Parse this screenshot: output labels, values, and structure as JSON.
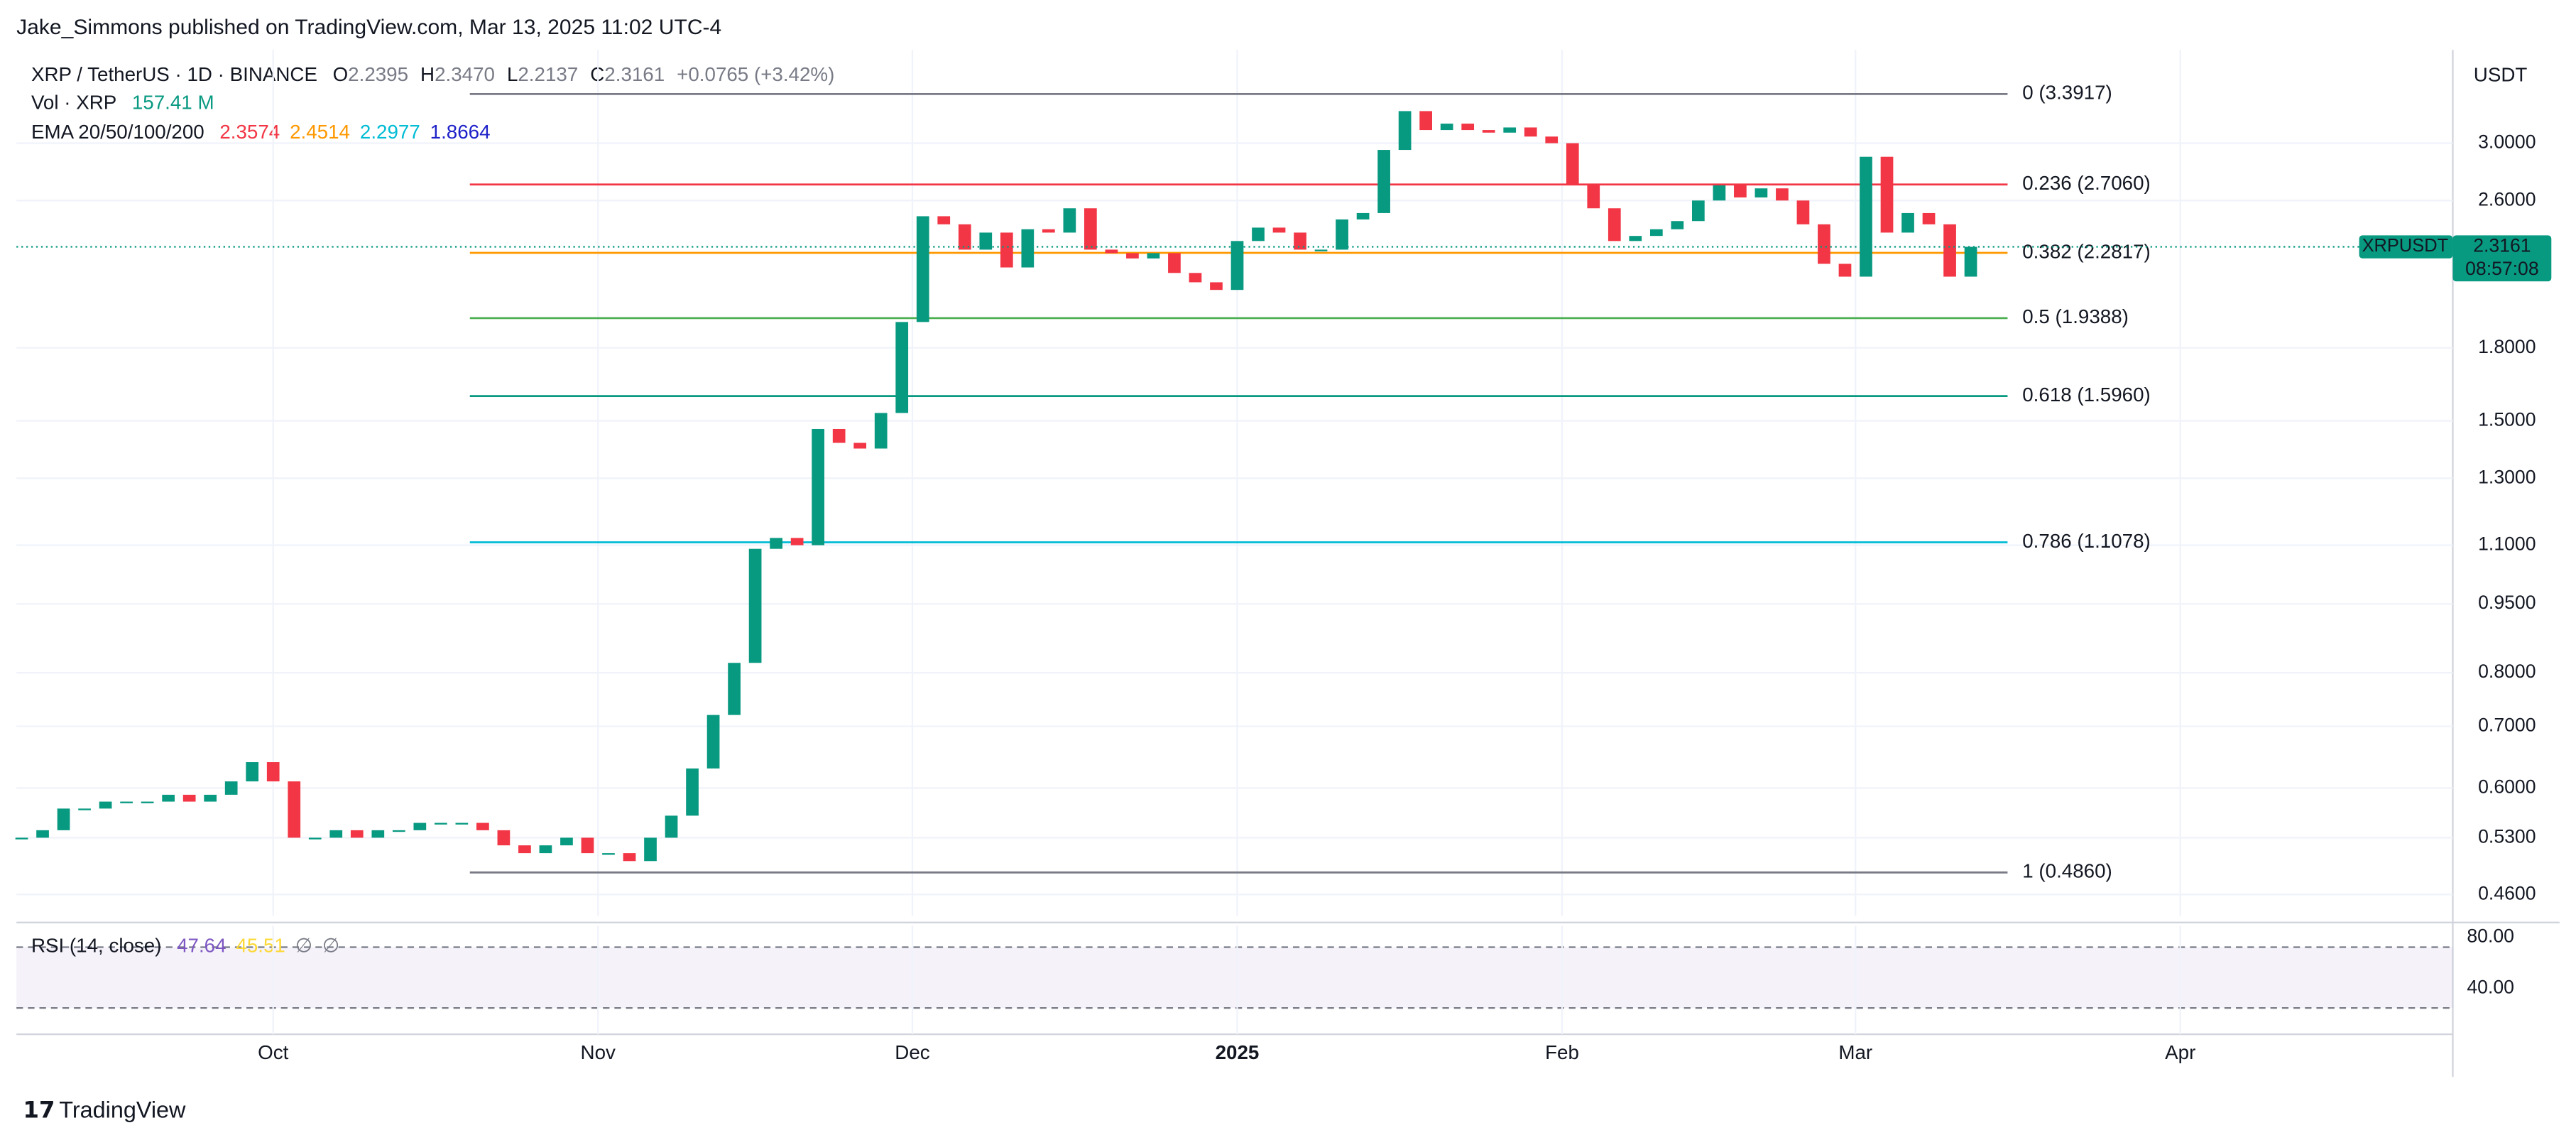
{
  "header": {
    "publisher": "Jake_Simmons published on TradingView.com, Mar 13, 2025 11:02 UTC-4"
  },
  "legend": {
    "symbol": "XRP / TetherUS · 1D · BINANCE",
    "ohlc": [
      {
        "label": "O",
        "value": "2.2395"
      },
      {
        "label": "H",
        "value": "2.3470"
      },
      {
        "label": "L",
        "value": "2.2137"
      },
      {
        "label": "C",
        "value": "2.3161"
      }
    ],
    "change": "+0.0765 (+3.42%)",
    "volume": {
      "label": "Vol · XRP",
      "value": "157.41 M"
    },
    "ema": {
      "label": "EMA 20/50/100/200",
      "values": [
        {
          "value": "2.3574",
          "color": "#f23645"
        },
        {
          "value": "2.4514",
          "color": "#ff9800"
        },
        {
          "value": "2.2977",
          "color": "#00bcd4"
        },
        {
          "value": "1.8664",
          "color": "#1e22c8"
        }
      ]
    }
  },
  "chart_data": {
    "type": "candlestick",
    "series": [
      {
        "name": "XRPUSDT",
        "values": [
          0.53,
          0.54,
          0.57,
          0.57,
          0.58,
          0.58,
          0.58,
          0.59,
          0.58,
          0.59,
          0.61,
          0.64,
          0.61,
          0.53,
          0.53,
          0.54,
          0.53,
          0.54,
          0.54,
          0.55,
          0.55,
          0.55,
          0.54,
          0.52,
          0.51,
          0.52,
          0.53,
          0.51,
          0.51,
          0.5,
          0.53,
          0.56,
          0.63,
          0.72,
          0.82,
          1.09,
          1.12,
          1.1,
          1.47,
          1.42,
          1.4,
          1.53,
          1.92,
          2.5,
          2.45,
          2.3,
          2.4,
          2.2,
          2.42,
          2.4,
          2.55,
          2.3,
          2.28,
          2.25,
          2.28,
          2.17,
          2.12,
          2.08,
          2.35,
          2.43,
          2.4,
          2.3,
          2.3,
          2.48,
          2.52,
          2.95,
          3.25,
          3.1,
          3.15,
          3.1,
          3.08,
          3.12,
          3.05,
          3.0,
          2.7,
          2.55,
          2.35,
          2.38,
          2.42,
          2.47,
          2.6,
          2.7,
          2.62,
          2.68,
          2.6,
          2.45,
          2.22,
          2.15,
          2.9,
          2.4,
          2.52,
          2.45,
          2.15,
          2.3161
        ]
      }
    ],
    "up_color": "#089981",
    "down_color": "#f23645",
    "log_scale": true,
    "grid": true,
    "ylim": [
      0.436,
      3.71
    ],
    "yticks": [
      {
        "value": 3,
        "label": "3.0000"
      },
      {
        "value": 2.6,
        "label": "2.6000"
      },
      {
        "value": 1.8,
        "label": "1.8000"
      },
      {
        "value": 1.5,
        "label": "1.5000"
      },
      {
        "value": 1.3,
        "label": "1.3000"
      },
      {
        "value": 1.1,
        "label": "1.1000"
      },
      {
        "value": 0.95,
        "label": "0.9500"
      },
      {
        "value": 0.8,
        "label": "0.8000"
      },
      {
        "value": 0.7,
        "label": "0.7000"
      },
      {
        "value": 0.6,
        "label": "0.6000"
      },
      {
        "value": 0.53,
        "label": "0.5300"
      },
      {
        "value": 0.46,
        "label": "0.4600"
      }
    ],
    "xlim": [
      -0.25,
      116
    ],
    "xticks": [
      {
        "value": 12,
        "label": "Oct"
      },
      {
        "value": 27.5,
        "label": "Nov"
      },
      {
        "value": 42.5,
        "label": "Dec"
      },
      {
        "value": 58,
        "label": "2025"
      },
      {
        "value": 73.5,
        "label": "Feb"
      },
      {
        "value": 87.5,
        "label": "Mar"
      },
      {
        "value": 103,
        "label": "Apr"
      }
    ],
    "fib_levels": [
      {
        "value": 3.3917,
        "label": "0 (3.3917)",
        "color": "#787b86"
      },
      {
        "value": 2.706,
        "label": "0.236 (2.7060)",
        "color": "#f23645"
      },
      {
        "value": 2.2817,
        "label": "0.382 (2.2817)",
        "color": "#ff9800"
      },
      {
        "value": 1.9388,
        "label": "0.5 (1.9388)",
        "color": "#4caf50"
      },
      {
        "value": 1.596,
        "label": "0.618 (1.5960)",
        "color": "#089981"
      },
      {
        "value": 1.1078,
        "label": "0.786 (1.1078)",
        "color": "#00bcd4"
      },
      {
        "value": 0.486,
        "label": "1 (0.4860)",
        "color": "#787b86"
      }
    ]
  },
  "rsi": {
    "label": "RSI (14, close)",
    "values": [
      {
        "value": "47.64",
        "color": "#7e57c2"
      },
      {
        "value": "45.51",
        "color": "#fdd835"
      },
      {
        "value": "∅",
        "color": "#787b86"
      },
      {
        "value": "∅",
        "color": "#787b86"
      }
    ],
    "ylim": [
      9,
      89
    ],
    "yticks": [
      {
        "value": 80,
        "label": "80.00"
      },
      {
        "value": 40,
        "label": "40.00"
      }
    ]
  },
  "price_label": {
    "symbol": "XRPUSDT",
    "price": "2.3161",
    "countdown": "08:57:08"
  },
  "currency": "USDT",
  "footer": "TradingView"
}
